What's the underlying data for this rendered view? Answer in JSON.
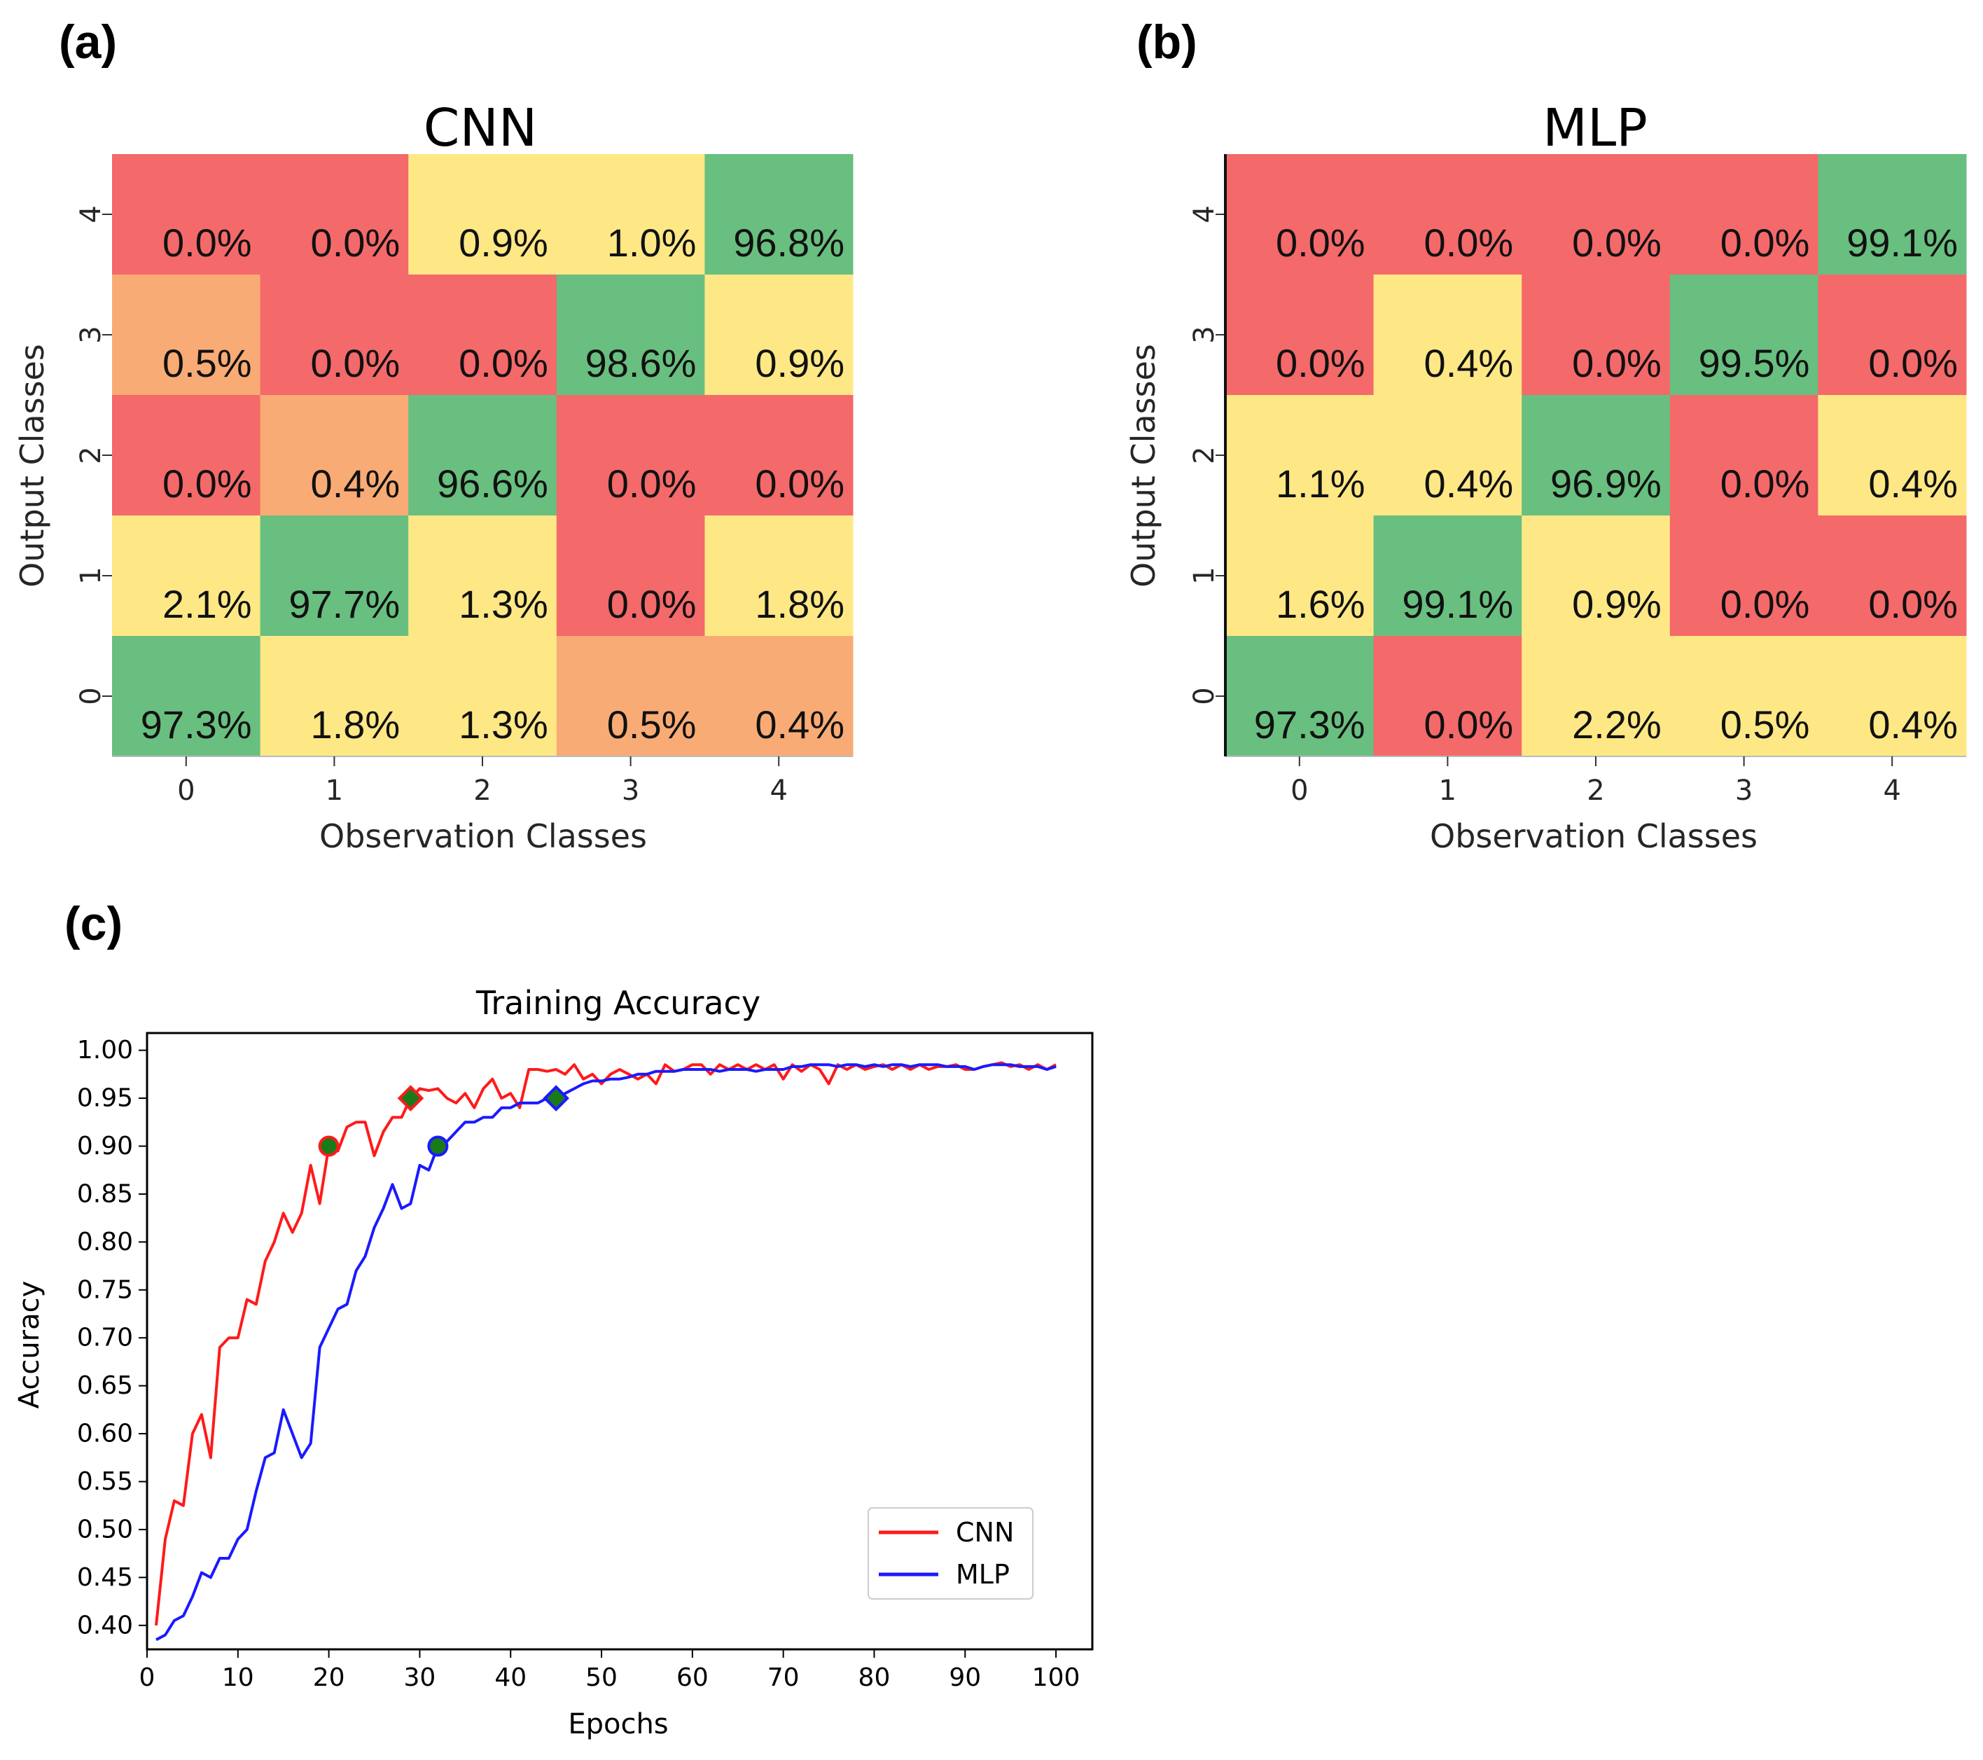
{
  "panel_labels": {
    "a": "(a)",
    "b": "(b)",
    "c": "(c)"
  },
  "colors": {
    "red": "#f4696a",
    "orange": "#f9ab75",
    "yellow": "#fee886",
    "green": "#68bf7f",
    "cnn_line": "#ff1a1a",
    "mlp_line": "#1a1aff",
    "marker_fill": "#1a7a1a"
  },
  "chart_data": [
    {
      "type": "heatmap",
      "title": "CNN",
      "xlabel": "Observation Classes",
      "ylabel": "Output Classes",
      "x_ticks": [
        "0",
        "1",
        "2",
        "3",
        "4"
      ],
      "y_ticks": [
        "4",
        "3",
        "2",
        "1",
        "0"
      ],
      "rows": [
        {
          "output_class": "4",
          "values": [
            "0.0%",
            "0.0%",
            "0.9%",
            "1.0%",
            "96.8%"
          ],
          "colors": [
            "red",
            "red",
            "yellow",
            "yellow",
            "green"
          ]
        },
        {
          "output_class": "3",
          "values": [
            "0.5%",
            "0.0%",
            "0.0%",
            "98.6%",
            "0.9%"
          ],
          "colors": [
            "orange",
            "red",
            "red",
            "green",
            "yellow"
          ]
        },
        {
          "output_class": "2",
          "values": [
            "0.0%",
            "0.4%",
            "96.6%",
            "0.0%",
            "0.0%"
          ],
          "colors": [
            "red",
            "orange",
            "green",
            "red",
            "red"
          ]
        },
        {
          "output_class": "1",
          "values": [
            "2.1%",
            "97.7%",
            "1.3%",
            "0.0%",
            "1.8%"
          ],
          "colors": [
            "yellow",
            "green",
            "yellow",
            "red",
            "yellow"
          ]
        },
        {
          "output_class": "0",
          "values": [
            "97.3%",
            "1.8%",
            "1.3%",
            "0.5%",
            "0.4%"
          ],
          "colors": [
            "green",
            "yellow",
            "yellow",
            "orange",
            "orange"
          ]
        }
      ]
    },
    {
      "type": "heatmap",
      "title": "MLP",
      "xlabel": "Observation Classes",
      "ylabel": "Output Classes",
      "x_ticks": [
        "0",
        "1",
        "2",
        "3",
        "4"
      ],
      "y_ticks": [
        "4",
        "3",
        "2",
        "1",
        "0"
      ],
      "rows": [
        {
          "output_class": "4",
          "values": [
            "0.0%",
            "0.0%",
            "0.0%",
            "0.0%",
            "99.1%"
          ],
          "colors": [
            "red",
            "red",
            "red",
            "red",
            "green"
          ]
        },
        {
          "output_class": "3",
          "values": [
            "0.0%",
            "0.4%",
            "0.0%",
            "99.5%",
            "0.0%"
          ],
          "colors": [
            "red",
            "yellow",
            "red",
            "green",
            "red"
          ]
        },
        {
          "output_class": "2",
          "values": [
            "1.1%",
            "0.4%",
            "96.9%",
            "0.0%",
            "0.4%"
          ],
          "colors": [
            "yellow",
            "yellow",
            "green",
            "red",
            "yellow"
          ]
        },
        {
          "output_class": "1",
          "values": [
            "1.6%",
            "99.1%",
            "0.9%",
            "0.0%",
            "0.0%"
          ],
          "colors": [
            "yellow",
            "green",
            "yellow",
            "red",
            "red"
          ]
        },
        {
          "output_class": "0",
          "values": [
            "97.3%",
            "0.0%",
            "2.2%",
            "0.5%",
            "0.4%"
          ],
          "colors": [
            "green",
            "red",
            "yellow",
            "yellow",
            "yellow"
          ]
        }
      ]
    },
    {
      "type": "line",
      "title": "Training Accuracy",
      "xlabel": "Epochs",
      "ylabel": "Accuracy",
      "xlim": [
        0,
        104
      ],
      "ylim": [
        0.375,
        1.018
      ],
      "x_ticks": [
        0,
        10,
        20,
        30,
        40,
        50,
        60,
        70,
        80,
        90,
        100
      ],
      "y_ticks": [
        0.4,
        0.45,
        0.5,
        0.55,
        0.6,
        0.65,
        0.7,
        0.75,
        0.8,
        0.85,
        0.9,
        0.95,
        1.0
      ],
      "legend_position": "lower-right",
      "series": [
        {
          "name": "CNN",
          "color_key": "cnn_line",
          "x": [
            1,
            2,
            3,
            4,
            5,
            6,
            7,
            8,
            9,
            10,
            11,
            12,
            13,
            14,
            15,
            16,
            17,
            18,
            19,
            20,
            21,
            22,
            23,
            24,
            25,
            26,
            27,
            28,
            29,
            30,
            31,
            32,
            33,
            34,
            35,
            36,
            37,
            38,
            39,
            40,
            41,
            42,
            43,
            44,
            45,
            46,
            47,
            48,
            49,
            50,
            51,
            52,
            53,
            54,
            55,
            56,
            57,
            58,
            59,
            60,
            61,
            62,
            63,
            64,
            65,
            66,
            67,
            68,
            69,
            70,
            71,
            72,
            73,
            74,
            75,
            76,
            77,
            78,
            79,
            80,
            81,
            82,
            83,
            84,
            85,
            86,
            87,
            88,
            89,
            90,
            91,
            92,
            93,
            94,
            95,
            96,
            97,
            98,
            99,
            100
          ],
          "y": [
            0.4,
            0.49,
            0.53,
            0.525,
            0.6,
            0.62,
            0.575,
            0.69,
            0.7,
            0.7,
            0.74,
            0.735,
            0.78,
            0.8,
            0.83,
            0.81,
            0.83,
            0.88,
            0.84,
            0.9,
            0.895,
            0.92,
            0.925,
            0.925,
            0.89,
            0.915,
            0.93,
            0.93,
            0.95,
            0.96,
            0.958,
            0.96,
            0.95,
            0.945,
            0.955,
            0.94,
            0.96,
            0.97,
            0.95,
            0.955,
            0.94,
            0.98,
            0.98,
            0.978,
            0.98,
            0.975,
            0.985,
            0.97,
            0.975,
            0.965,
            0.975,
            0.98,
            0.975,
            0.97,
            0.975,
            0.965,
            0.985,
            0.978,
            0.98,
            0.985,
            0.985,
            0.975,
            0.985,
            0.98,
            0.985,
            0.98,
            0.985,
            0.98,
            0.985,
            0.97,
            0.985,
            0.978,
            0.985,
            0.98,
            0.965,
            0.985,
            0.98,
            0.985,
            0.98,
            0.983,
            0.985,
            0.98,
            0.985,
            0.98,
            0.985,
            0.98,
            0.983,
            0.983,
            0.985,
            0.98,
            0.98,
            0.983,
            0.985,
            0.987,
            0.983,
            0.985,
            0.98,
            0.985,
            0.98,
            0.985
          ],
          "markers": [
            {
              "x": 20,
              "y": 0.9,
              "shape": "circle"
            },
            {
              "x": 29,
              "y": 0.95,
              "shape": "diamond"
            }
          ]
        },
        {
          "name": "MLP",
          "color_key": "mlp_line",
          "x": [
            1,
            2,
            3,
            4,
            5,
            6,
            7,
            8,
            9,
            10,
            11,
            12,
            13,
            14,
            15,
            16,
            17,
            18,
            19,
            20,
            21,
            22,
            23,
            24,
            25,
            26,
            27,
            28,
            29,
            30,
            31,
            32,
            33,
            34,
            35,
            36,
            37,
            38,
            39,
            40,
            41,
            42,
            43,
            44,
            45,
            46,
            47,
            48,
            49,
            50,
            51,
            52,
            53,
            54,
            55,
            56,
            57,
            58,
            59,
            60,
            61,
            62,
            63,
            64,
            65,
            66,
            67,
            68,
            69,
            70,
            71,
            72,
            73,
            74,
            75,
            76,
            77,
            78,
            79,
            80,
            81,
            82,
            83,
            84,
            85,
            86,
            87,
            88,
            89,
            90,
            91,
            92,
            93,
            94,
            95,
            96,
            97,
            98,
            99,
            100
          ],
          "y": [
            0.385,
            0.39,
            0.405,
            0.41,
            0.43,
            0.455,
            0.45,
            0.47,
            0.47,
            0.49,
            0.5,
            0.54,
            0.575,
            0.58,
            0.625,
            0.6,
            0.575,
            0.59,
            0.69,
            0.71,
            0.73,
            0.735,
            0.77,
            0.785,
            0.815,
            0.835,
            0.86,
            0.835,
            0.84,
            0.88,
            0.875,
            0.9,
            0.905,
            0.915,
            0.925,
            0.925,
            0.93,
            0.93,
            0.94,
            0.94,
            0.945,
            0.945,
            0.945,
            0.95,
            0.95,
            0.955,
            0.96,
            0.965,
            0.968,
            0.968,
            0.97,
            0.97,
            0.972,
            0.975,
            0.975,
            0.978,
            0.978,
            0.978,
            0.98,
            0.98,
            0.98,
            0.98,
            0.978,
            0.98,
            0.98,
            0.98,
            0.978,
            0.98,
            0.98,
            0.98,
            0.983,
            0.983,
            0.985,
            0.985,
            0.985,
            0.983,
            0.985,
            0.985,
            0.983,
            0.985,
            0.983,
            0.985,
            0.985,
            0.983,
            0.985,
            0.985,
            0.985,
            0.983,
            0.983,
            0.983,
            0.98,
            0.983,
            0.985,
            0.985,
            0.985,
            0.983,
            0.983,
            0.983,
            0.98,
            0.983
          ],
          "markers": [
            {
              "x": 32,
              "y": 0.9,
              "shape": "circle"
            },
            {
              "x": 45,
              "y": 0.95,
              "shape": "diamond"
            }
          ]
        }
      ]
    }
  ]
}
